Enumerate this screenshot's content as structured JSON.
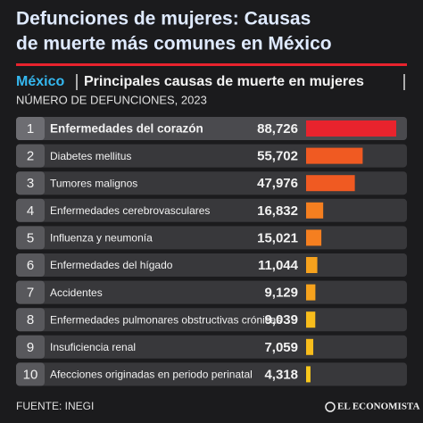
{
  "chart_data": {
    "type": "bar",
    "title_lines": [
      "Defunciones de mujeres: Causas",
      "de muerte más comunes en México"
    ],
    "subtitle_place": "México",
    "subtitle": "Principales causas de muerte en mujeres",
    "unit_label": "NÚMERO DE DEFUNCIONES, 2023",
    "ranks": [
      1,
      2,
      3,
      4,
      5,
      6,
      7,
      8,
      9,
      10
    ],
    "categories": [
      "Enfermedades del corazón",
      "Diabetes mellitus",
      "Tumores malignos",
      "Enfermedades cerebrovasculares",
      "Influenza y neumonía",
      "Enfermedades del hígado",
      "Accidentes",
      "Enfermedades pulmonares obstructivas crónicas",
      "Insuficiencia renal",
      "Afecciones originadas en periodo perinatal"
    ],
    "values": [
      88726,
      55702,
      47976,
      16832,
      15021,
      11044,
      9129,
      9039,
      7059,
      4318
    ],
    "value_labels": [
      "88,726",
      "55,702",
      "47,976",
      "16,832",
      "15,021",
      "11,044",
      "9,129",
      "9,039",
      "7,059",
      "4,318"
    ],
    "colors": [
      "#e8232d",
      "#f05a22",
      "#f05a22",
      "#f57f20",
      "#f57f20",
      "#f6a21d",
      "#f6a21d",
      "#f8bd1c",
      "#f8bd1c",
      "#f8c81c"
    ],
    "source": "FUENTE: INEGI",
    "brand": "EL ECONOMISTA"
  }
}
